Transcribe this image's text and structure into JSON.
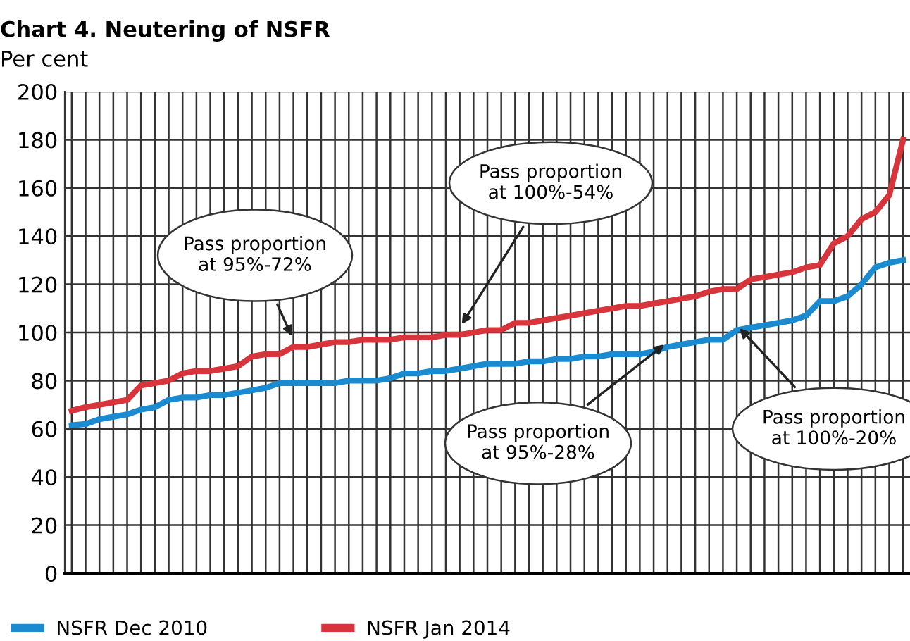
{
  "chart_data": {
    "type": "line",
    "title": "Chart 4. Neutering of NSFR",
    "ylabel": "Per cent",
    "categories": [
      null,
      null,
      null,
      null,
      null,
      null,
      null,
      null,
      null,
      null,
      null,
      null,
      null,
      null,
      null,
      null,
      null,
      null,
      null,
      null,
      null,
      null,
      null,
      null,
      null,
      null,
      null,
      null,
      null,
      null,
      null,
      null,
      null,
      null,
      null,
      null,
      null,
      null,
      null,
      null,
      null,
      null,
      null,
      null,
      null,
      null,
      null,
      null,
      null,
      null,
      null,
      null,
      null,
      null,
      null,
      null,
      null,
      null,
      null,
      null,
      null
    ],
    "series": [
      {
        "name": "NSFR Dec 2010",
        "color": "#1a8bd0",
        "values": [
          61.5,
          62,
          64,
          65,
          66,
          68,
          69,
          72,
          73,
          73,
          74,
          74,
          75,
          76,
          77,
          79,
          79,
          79,
          79,
          79,
          80,
          80,
          80,
          81,
          83,
          83,
          84,
          84,
          85,
          86,
          87,
          87,
          87,
          88,
          88,
          89,
          89,
          90,
          90,
          91,
          91,
          91,
          92,
          94,
          95,
          96,
          97,
          97,
          101,
          102,
          103,
          104,
          105,
          107,
          113,
          113,
          115,
          120,
          127,
          129,
          130
        ]
      },
      {
        "name": "NSFR Jan 2014",
        "color": "#d8343c",
        "values": [
          67.5,
          69,
          70,
          71,
          72,
          78,
          79,
          80,
          83,
          84,
          84,
          85,
          86,
          90,
          91,
          91,
          94,
          94,
          95,
          96,
          96,
          97,
          97,
          97,
          98,
          98,
          98,
          99,
          99,
          100,
          101,
          101,
          104,
          104,
          105,
          106,
          107,
          108,
          109,
          110,
          111,
          111,
          112,
          113,
          114,
          115,
          117,
          118,
          118,
          122,
          123,
          124,
          125,
          127,
          128,
          137,
          140,
          147,
          150,
          157,
          180
        ]
      }
    ],
    "ylim": [
      0,
      200
    ],
    "yticks": [
      0,
      20,
      40,
      60,
      80,
      100,
      120,
      140,
      160,
      180,
      200
    ],
    "grid": true,
    "legend": "bottom",
    "annotations": [
      "Pass proportion\nat 95%-72%",
      "Pass proportion\nat 100%-54%",
      "Pass proportion\nat 95%-28%",
      "Pass proportion\nat 100%-20%"
    ]
  }
}
